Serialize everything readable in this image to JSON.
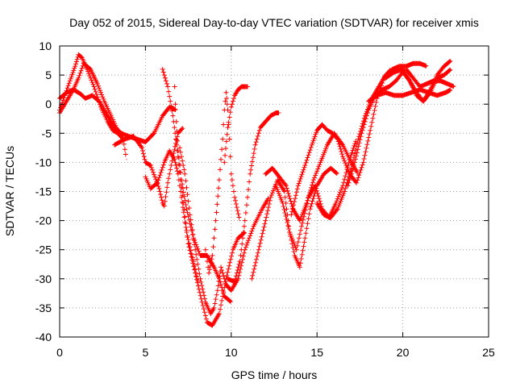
{
  "chart_data": {
    "type": "scatter",
    "title": "Day 052 of 2015, Sidereal Day-to-day VTEC variation (SDTVAR) for receiver xmis",
    "xlabel": "GPS time / hours",
    "ylabel": "SDTVAR / TECUs",
    "xlim": [
      0,
      25
    ],
    "ylim": [
      -40,
      10
    ],
    "xticks": [
      0,
      5,
      10,
      15,
      20,
      25
    ],
    "yticks": [
      -40,
      -35,
      -30,
      -25,
      -20,
      -15,
      -10,
      -5,
      0,
      5,
      10
    ],
    "marker": "plus",
    "grid": true,
    "series_color": "#ff0000",
    "series": [
      {
        "x": [
          0.0,
          0.3,
          0.6,
          0.9,
          1.1,
          1.3,
          1.6,
          2.0,
          2.4,
          2.8,
          3.1,
          3.4,
          3.7,
          3.9
        ],
        "y": [
          -1.0,
          1.5,
          4.0,
          6.5,
          8.5,
          8.0,
          6.0,
          3.0,
          -0.5,
          -3.0,
          -4.5,
          -5.0,
          -6.0,
          -9.5
        ]
      },
      {
        "x": [
          0.0,
          0.4,
          0.8,
          1.2,
          1.5,
          1.9,
          2.3,
          2.8,
          3.2,
          3.6,
          4.0,
          4.5,
          5.0,
          5.5,
          6.0,
          6.4,
          6.8
        ],
        "y": [
          1.0,
          2.0,
          2.5,
          1.8,
          1.0,
          1.5,
          0.5,
          -2.0,
          -4.0,
          -5.0,
          -5.5,
          -6.0,
          -6.5,
          -5.0,
          -2.0,
          -0.5,
          -1.0
        ]
      },
      {
        "x": [
          0.0,
          0.4,
          0.8,
          1.1,
          1.4,
          1.8,
          2.2,
          2.6,
          3.0,
          3.3,
          3.6
        ],
        "y": [
          -1.5,
          0.5,
          2.5,
          4.5,
          7.0,
          6.0,
          3.5,
          0.5,
          -2.0,
          -4.0,
          -5.5
        ]
      },
      {
        "x": [
          3.2,
          3.8,
          4.3,
          4.8,
          5.0,
          5.3,
          5.8,
          6.0,
          6.1,
          6.3,
          6.6,
          6.9,
          7.2
        ],
        "y": [
          -7.0,
          -6.0,
          -5.5,
          -7.5,
          -10.0,
          -10.5,
          -14.5,
          -17.0,
          -17.5,
          -13.5,
          -9.0,
          -5.0,
          -4.0
        ]
      },
      {
        "x": [
          5.0,
          5.3,
          5.7,
          6.1,
          6.4,
          6.7,
          6.9,
          7.1,
          7.4,
          7.8,
          8.1
        ],
        "y": [
          -12.5,
          -14.5,
          -13.5,
          -10.0,
          -8.0,
          -9.5,
          -12.0,
          -16.0,
          -22.0,
          -27.0,
          -31.0
        ]
      },
      {
        "x": [
          6.0,
          6.3,
          6.6,
          6.9,
          7.2,
          7.5,
          7.9,
          8.3,
          8.6,
          8.9,
          9.3,
          9.7,
          10.1,
          10.4,
          10.6,
          10.8
        ],
        "y": [
          6.0,
          3.0,
          -2.0,
          -9.0,
          -17.0,
          -24.0,
          -29.0,
          -34.0,
          -37.5,
          -38.0,
          -36.0,
          -30.0,
          -25.0,
          -23.0,
          -22.5,
          -22.0
        ]
      },
      {
        "x": [
          7.0,
          7.3,
          7.6,
          7.9,
          8.2,
          8.5,
          8.8,
          9.0,
          9.2,
          9.4,
          9.7,
          10.0,
          10.4,
          10.8,
          11.3,
          11.8,
          12.2
        ],
        "y": [
          -7.5,
          -12.0,
          -19.0,
          -25.0,
          -30.0,
          -34.0,
          -36.0,
          -35.0,
          -32.0,
          -28.0,
          -31.0,
          -32.0,
          -30.0,
          -25.0,
          -21.0,
          -18.0,
          -16.0
        ]
      },
      {
        "x": [
          6.7,
          6.8,
          6.9,
          7.1,
          7.4,
          7.8,
          8.2,
          8.6,
          9.0,
          9.3,
          9.6,
          10.0
        ],
        "y": [
          3.0,
          -3.0,
          -8.0,
          -13.0,
          -18.0,
          -23.0,
          -26.0,
          -26.0,
          -28.0,
          -30.0,
          -33.0,
          -34.0
        ]
      },
      {
        "x": [
          8.5,
          8.7,
          8.9,
          9.1,
          9.3,
          9.5,
          9.6,
          9.7,
          9.8,
          9.9,
          10.0,
          10.2,
          10.5
        ],
        "y": [
          -25.0,
          -29.0,
          -26.0,
          -20.0,
          -13.0,
          -6.0,
          -1.0,
          2.0,
          -1.0,
          -6.0,
          -12.0,
          -16.0,
          -20.0
        ]
      },
      {
        "x": [
          9.6,
          9.8,
          10.0,
          10.2,
          10.4,
          10.6,
          10.8,
          11.0
        ],
        "y": [
          -10.0,
          -4.0,
          -0.5,
          1.5,
          2.5,
          3.0,
          3.0,
          3.0
        ]
      },
      {
        "x": [
          9.8,
          10.2,
          10.5,
          10.8,
          11.1,
          11.4,
          11.7,
          12.0,
          12.3,
          12.6,
          12.8
        ],
        "y": [
          -30.0,
          -30.5,
          -27.0,
          -20.0,
          -12.0,
          -7.0,
          -4.0,
          -3.0,
          -2.0,
          -1.5,
          -1.5
        ]
      },
      {
        "x": [
          11.2,
          11.6,
          12.0,
          12.3,
          12.7,
          13.1,
          13.4,
          13.7,
          14.0,
          14.3,
          14.6,
          15.0,
          15.4,
          15.8,
          16.2
        ],
        "y": [
          -30.0,
          -25.0,
          -20.0,
          -16.0,
          -13.0,
          -15.0,
          -22.0,
          -26.0,
          -28.0,
          -23.0,
          -18.0,
          -14.0,
          -12.0,
          -11.0,
          -12.0
        ]
      },
      {
        "x": [
          12.0,
          12.4,
          12.8,
          13.2,
          13.6,
          14.0,
          14.4,
          14.8,
          15.2,
          15.6,
          16.0,
          16.5,
          17.0,
          17.4
        ],
        "y": [
          -12.0,
          -11.0,
          -12.5,
          -14.0,
          -18.0,
          -20.0,
          -17.0,
          -13.0,
          -10.0,
          -7.0,
          -5.0,
          -7.0,
          -10.0,
          -12.0
        ]
      },
      {
        "x": [
          12.6,
          13.0,
          13.4,
          13.8,
          14.1,
          14.5,
          14.9,
          15.3,
          15.7,
          16.1,
          16.5,
          16.9,
          17.3
        ],
        "y": [
          -14.0,
          -17.0,
          -22.0,
          -25.0,
          -21.0,
          -16.0,
          -14.0,
          -18.0,
          -19.5,
          -17.0,
          -14.0,
          -9.5,
          -6.0
        ]
      },
      {
        "x": [
          13.5,
          13.9,
          14.3,
          14.7,
          15.0,
          15.3,
          15.6,
          15.9,
          16.2,
          16.5,
          16.9,
          17.3,
          17.7,
          18.1,
          18.5,
          18.9,
          19.3
        ],
        "y": [
          -19.0,
          -14.0,
          -10.5,
          -7.0,
          -4.5,
          -3.5,
          -4.5,
          -5.0,
          -6.0,
          -9.0,
          -12.0,
          -13.5,
          -10.0,
          -4.5,
          1.0,
          4.5,
          6.0
        ]
      },
      {
        "x": [
          15.0,
          15.4,
          15.8,
          16.2,
          16.6,
          17.0,
          17.4,
          17.8,
          18.2,
          18.6,
          19.0,
          19.4,
          19.8,
          20.2,
          20.6,
          21.0,
          21.4
        ],
        "y": [
          -17.0,
          -19.0,
          -19.5,
          -18.0,
          -15.0,
          -11.0,
          -6.0,
          -2.0,
          1.0,
          3.0,
          5.0,
          6.0,
          6.5,
          6.5,
          7.0,
          7.0,
          6.5
        ]
      },
      {
        "x": [
          16.8,
          17.2,
          17.6,
          18.0,
          18.4,
          18.8,
          19.2,
          19.6,
          20.0,
          20.4,
          20.8,
          21.2,
          21.6,
          22.0,
          22.4,
          22.8
        ],
        "y": [
          -14.0,
          -10.0,
          -5.0,
          -1.0,
          1.5,
          2.5,
          3.0,
          4.0,
          5.5,
          4.0,
          2.0,
          0.5,
          2.0,
          4.5,
          5.0,
          6.0
        ]
      },
      {
        "x": [
          18.0,
          18.5,
          19.0,
          19.5,
          20.0,
          20.5,
          21.0,
          21.5,
          22.0,
          22.5,
          22.8
        ],
        "y": [
          0.5,
          1.5,
          2.0,
          1.5,
          1.5,
          2.0,
          2.5,
          2.0,
          1.5,
          2.0,
          2.5
        ]
      },
      {
        "x": [
          19.0,
          19.5,
          20.0,
          20.4,
          20.8,
          21.2,
          21.6,
          22.0,
          22.4,
          22.8
        ],
        "y": [
          4.5,
          5.5,
          6.0,
          4.0,
          1.5,
          0.5,
          2.5,
          5.0,
          6.5,
          7.5
        ]
      },
      {
        "x": [
          20.2,
          20.6,
          21.0,
          21.4,
          21.8,
          22.2,
          22.6,
          23.0
        ],
        "y": [
          6.0,
          4.5,
          3.0,
          3.5,
          4.0,
          4.0,
          3.5,
          3.0
        ]
      }
    ]
  }
}
